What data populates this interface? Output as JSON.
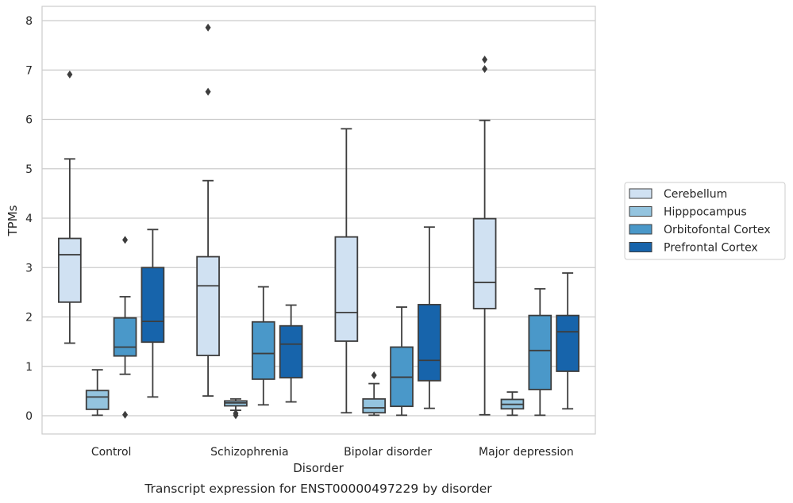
{
  "chart_data": {
    "type": "box",
    "xlabel": "Disorder",
    "ylabel": "TPMs",
    "caption": "Transcript expression for ENST00000497229 by disorder",
    "ylim": [
      -0.38,
      8.25
    ],
    "yticks": [
      0,
      1,
      2,
      3,
      4,
      5,
      6,
      7,
      8
    ],
    "grid": "horizontal",
    "legend_position": "right",
    "categories": [
      "Control",
      "Schizophrenia",
      "Bipolar disorder",
      "Major depression"
    ],
    "series": [
      {
        "name": "Cerebellum",
        "color": "#d0e1f2",
        "boxes": [
          {
            "q1": 2.3,
            "median": 3.26,
            "q3": 3.59,
            "whislo": 1.47,
            "whishi": 5.2,
            "fliers": [
              6.91
            ]
          },
          {
            "q1": 1.22,
            "median": 2.63,
            "q3": 3.22,
            "whislo": 0.4,
            "whishi": 4.76,
            "fliers": [
              6.56,
              7.86
            ]
          },
          {
            "q1": 1.51,
            "median": 2.09,
            "q3": 3.62,
            "whislo": 0.06,
            "whishi": 5.81,
            "fliers": []
          },
          {
            "q1": 2.17,
            "median": 2.7,
            "q3": 3.99,
            "whislo": 0.02,
            "whishi": 5.98,
            "fliers": [
              7.02,
              7.21
            ]
          }
        ]
      },
      {
        "name": "Hipppocampus",
        "color": "#94c4df",
        "boxes": [
          {
            "q1": 0.13,
            "median": 0.38,
            "q3": 0.51,
            "whislo": 0.01,
            "whishi": 0.93,
            "fliers": []
          },
          {
            "q1": 0.2,
            "median": 0.26,
            "q3": 0.3,
            "whislo": 0.11,
            "whishi": 0.34,
            "fliers": [
              0.01,
              0.05
            ]
          },
          {
            "q1": 0.06,
            "median": 0.16,
            "q3": 0.34,
            "whislo": 0.01,
            "whishi": 0.65,
            "fliers": [
              0.82
            ]
          },
          {
            "q1": 0.14,
            "median": 0.23,
            "q3": 0.33,
            "whislo": 0.01,
            "whishi": 0.48,
            "fliers": []
          }
        ]
      },
      {
        "name": "Orbitofontal Cortex",
        "color": "#4a98c9",
        "boxes": [
          {
            "q1": 1.21,
            "median": 1.39,
            "q3": 1.98,
            "whislo": 0.84,
            "whishi": 2.41,
            "fliers": [
              0.02,
              3.56
            ]
          },
          {
            "q1": 0.74,
            "median": 1.26,
            "q3": 1.9,
            "whislo": 0.22,
            "whishi": 2.61,
            "fliers": []
          },
          {
            "q1": 0.19,
            "median": 0.78,
            "q3": 1.39,
            "whislo": 0.01,
            "whishi": 2.2,
            "fliers": []
          },
          {
            "q1": 0.53,
            "median": 1.32,
            "q3": 2.03,
            "whislo": 0.01,
            "whishi": 2.57,
            "fliers": []
          }
        ]
      },
      {
        "name": "Prefrontal Cortex",
        "color": "#1764ab",
        "boxes": [
          {
            "q1": 1.49,
            "median": 1.91,
            "q3": 3.0,
            "whislo": 0.38,
            "whishi": 3.77,
            "fliers": []
          },
          {
            "q1": 0.77,
            "median": 1.45,
            "q3": 1.82,
            "whislo": 0.28,
            "whishi": 2.24,
            "fliers": []
          },
          {
            "q1": 0.71,
            "median": 1.12,
            "q3": 2.25,
            "whislo": 0.15,
            "whishi": 3.82,
            "fliers": []
          },
          {
            "q1": 0.9,
            "median": 1.7,
            "q3": 2.03,
            "whislo": 0.14,
            "whishi": 2.89,
            "fliers": []
          }
        ]
      }
    ]
  }
}
